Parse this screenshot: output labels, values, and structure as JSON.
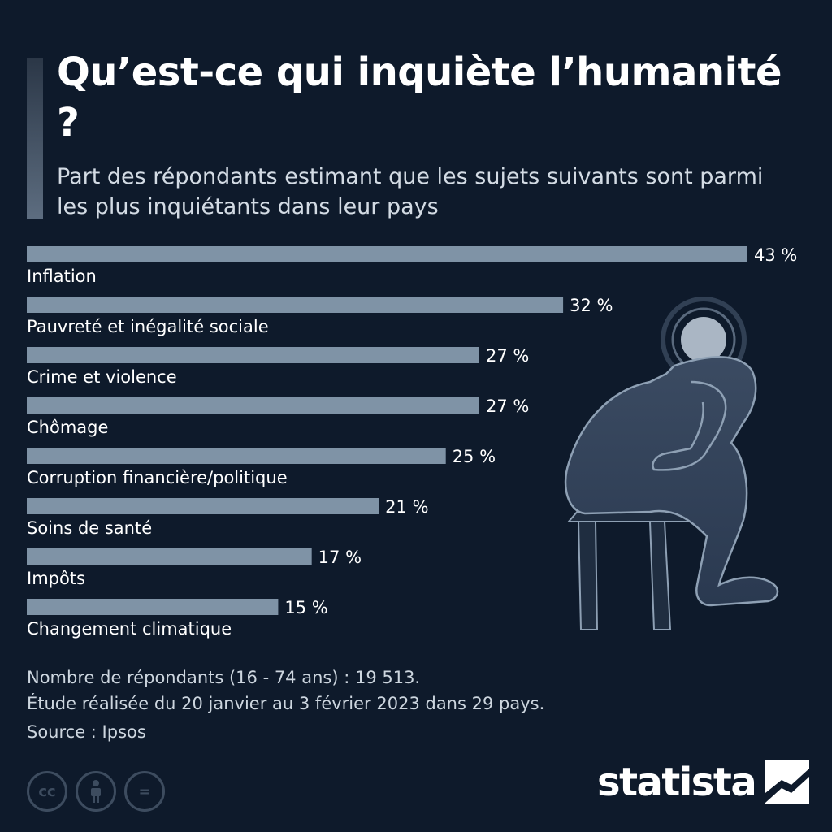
{
  "title": "Qu’est-ce qui inquiète l’humanité ?",
  "subtitle": "Part des répondants estimant que les sujets suivants sont parmi les plus inquiétants dans leur pays",
  "chart_data": {
    "type": "bar",
    "orientation": "horizontal",
    "categories": [
      "Inflation",
      "Pauvreté et inégalité sociale",
      "Crime et violence",
      "Chômage",
      "Corruption financière/politique",
      "Soins de santé",
      "Impôts",
      "Changement climatique"
    ],
    "values": [
      43,
      32,
      27,
      27,
      25,
      21,
      17,
      15
    ],
    "value_labels": [
      "43 %",
      "32 %",
      "27 %",
      "27 %",
      "25 %",
      "21 %",
      "17 %",
      "15 %"
    ],
    "unit": "%",
    "xlim": [
      0,
      43
    ],
    "grid": false,
    "legend": "none",
    "bar_color": "#7f93a6",
    "label_color": "#ffffff"
  },
  "notes": {
    "respondents": "Nombre de répondants (16 - 74 ans) : 19 513.",
    "period": "Étude réalisée du 20 janvier au 3 février 2023 dans 29 pays.",
    "source": "Source : Ipsos"
  },
  "license_icons": [
    {
      "name": "creative-commons-icon",
      "glyph": "cc"
    },
    {
      "name": "attribution-icon",
      "glyph": "person"
    },
    {
      "name": "no-derivatives-icon",
      "glyph": "="
    }
  ],
  "brand": {
    "name": "statista",
    "icon": "statista-logo-icon"
  },
  "illustration": "worried-person-sitting-icon",
  "colors": {
    "background": "#0e1a2b",
    "bar": "#7f93a6",
    "text": "#ffffff",
    "muted": "#3d4c5f"
  }
}
